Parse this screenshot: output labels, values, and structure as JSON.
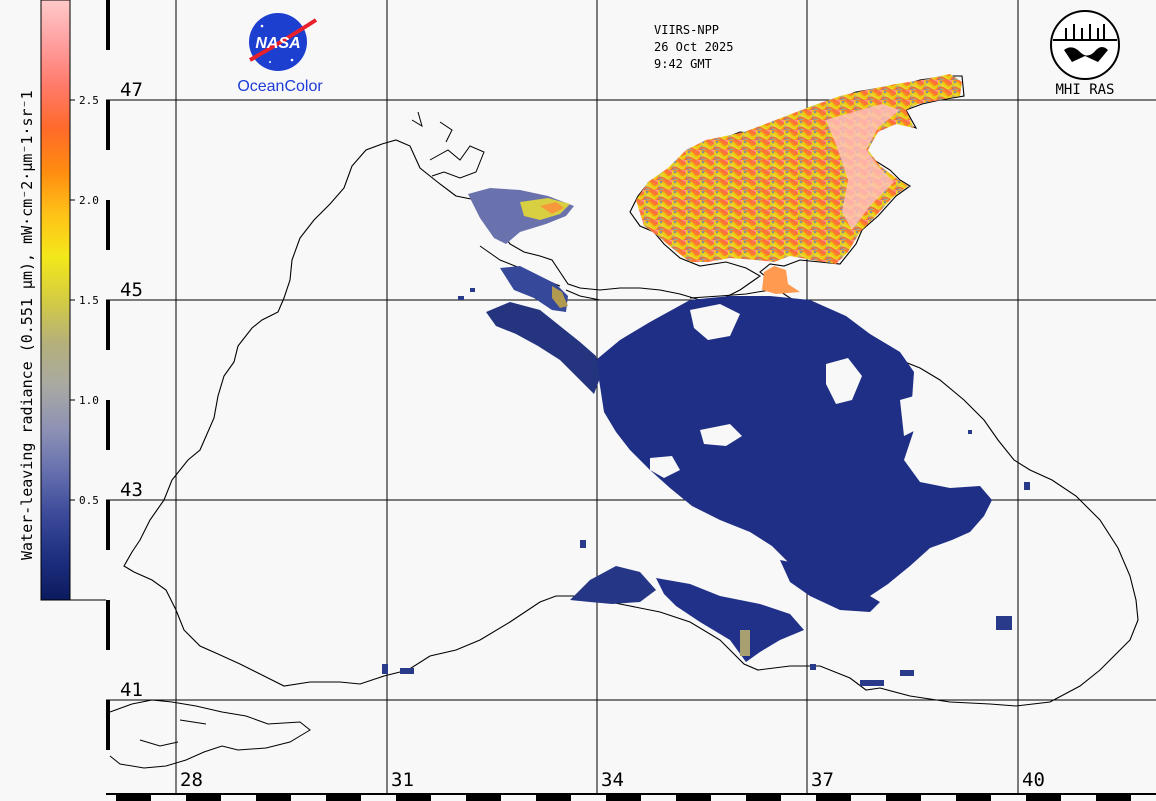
{
  "header": {
    "sensor": "VIIRS-NPP",
    "date": "26 Oct 2025",
    "time": "9:42 GMT"
  },
  "logos": {
    "nasa_text": "NASA",
    "oceancolor_text": "OceanColor",
    "mhi_text": "MHI RAS"
  },
  "colorbar": {
    "title": "Water-leaving radiance (0.551 µm), mW·cm⁻2·µm⁻1·sr⁻1",
    "ticks": [
      "2.5",
      "2.0",
      "1.5",
      "1.0",
      "0.5"
    ],
    "min": 0,
    "max": 3,
    "colors": [
      "#0b1a5e",
      "#1e2f80",
      "#3c4a9a",
      "#6670ae",
      "#8e92b4",
      "#a9a9a3",
      "#b5b07a",
      "#d4cc42",
      "#f3e81a",
      "#ffc218",
      "#ff8c10",
      "#ff6a2a",
      "#ff7a6a",
      "#ffa0a0",
      "#ffc9c9"
    ]
  },
  "grid": {
    "lat_labels": [
      "47",
      "45",
      "43",
      "41"
    ],
    "lon_labels": [
      "28",
      "31",
      "34",
      "37",
      "40"
    ]
  },
  "colors": {
    "background": "#f8f8f8",
    "open_sea": "#1f2f86",
    "coast": "#000000"
  }
}
